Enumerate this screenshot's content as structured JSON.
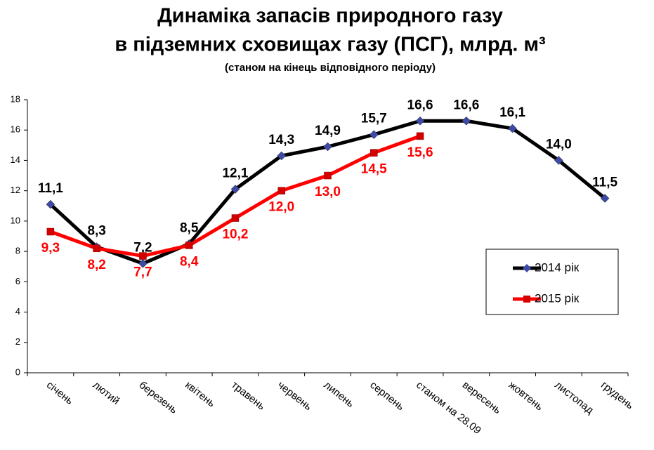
{
  "chart_data": {
    "type": "line",
    "title": [
      "Динаміка запасів природного газу",
      "в підземних сховищах газу (ПСГ), млрд. м³"
    ],
    "subtitle": "(станом на кінець відповідного періоду)",
    "categories": [
      "січень",
      "лютий",
      "березень",
      "квітень",
      "травень",
      "червень",
      "липень",
      "серпень",
      "станом на 28.09",
      "вересень",
      "жовтень",
      "листопад",
      "грудень"
    ],
    "series": [
      {
        "name": "2014 рік",
        "color": "#000000",
        "marker_color": "#3d4aa6",
        "marker": "diamond",
        "values": [
          11.1,
          8.3,
          7.2,
          8.5,
          12.1,
          14.3,
          14.9,
          15.7,
          16.6,
          16.6,
          16.1,
          14.0,
          11.5
        ],
        "value_labels": [
          "11,1",
          "8,3",
          "7,2",
          "8,5",
          "12,1",
          "14,3",
          "14,9",
          "15,7",
          "16,6",
          "16,6",
          "16,1",
          "14,0",
          "11,5"
        ]
      },
      {
        "name": "2015 рік",
        "color": "#ff0000",
        "marker_color": "#d40000",
        "marker": "square",
        "values": [
          9.3,
          8.2,
          7.7,
          8.4,
          10.2,
          12.0,
          13.0,
          14.5,
          15.6,
          null,
          null,
          null,
          null
        ],
        "value_labels": [
          "9,3",
          "8,2",
          "7,7",
          "8,4",
          "10,2",
          "12,0",
          "13,0",
          "14,5",
          "15,6",
          null,
          null,
          null,
          null
        ]
      }
    ],
    "ylim": [
      0,
      18
    ],
    "yticks": [
      0,
      2,
      4,
      6,
      8,
      10,
      12,
      14,
      16,
      18
    ],
    "grid": false,
    "legend": "right"
  }
}
